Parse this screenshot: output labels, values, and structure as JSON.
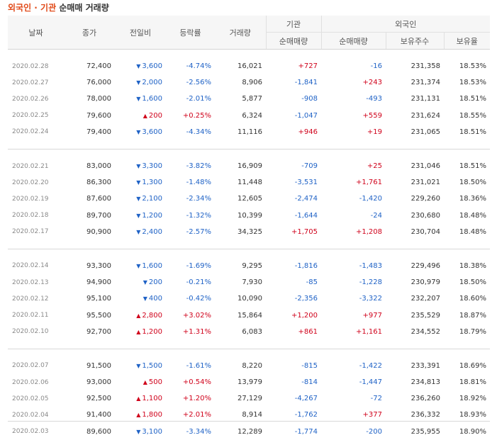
{
  "title": {
    "part1": "외국인 · 기관",
    "part2": "순매매 거래량"
  },
  "headers": {
    "date": "날짜",
    "close": "종가",
    "change": "전일비",
    "rate": "등락률",
    "volume": "거래량",
    "inst_group": "기관",
    "inst_net": "순매매량",
    "foreign_group": "외국인",
    "foreign_net": "순매매량",
    "foreign_hold": "보유주수",
    "foreign_ratio": "보유율"
  },
  "colors": {
    "up": "#d0021b",
    "down": "#1f62c6",
    "brand": "#e14a19"
  },
  "groups": [
    [
      {
        "date": "2020.02.28",
        "close": "72,400",
        "dir": "down",
        "change": "3,600",
        "rate": "-4.74%",
        "volume": "16,021",
        "inst": "+727",
        "foreign": "-16",
        "hold": "231,358",
        "ratio": "18.53%"
      },
      {
        "date": "2020.02.27",
        "close": "76,000",
        "dir": "down",
        "change": "2,000",
        "rate": "-2.56%",
        "volume": "8,906",
        "inst": "-1,841",
        "foreign": "+243",
        "hold": "231,374",
        "ratio": "18.53%"
      },
      {
        "date": "2020.02.26",
        "close": "78,000",
        "dir": "down",
        "change": "1,600",
        "rate": "-2.01%",
        "volume": "5,877",
        "inst": "-908",
        "foreign": "-493",
        "hold": "231,131",
        "ratio": "18.51%"
      },
      {
        "date": "2020.02.25",
        "close": "79,600",
        "dir": "up",
        "change": "200",
        "rate": "+0.25%",
        "volume": "6,324",
        "inst": "-1,047",
        "foreign": "+559",
        "hold": "231,624",
        "ratio": "18.55%"
      },
      {
        "date": "2020.02.24",
        "close": "79,400",
        "dir": "down",
        "change": "3,600",
        "rate": "-4.34%",
        "volume": "11,116",
        "inst": "+946",
        "foreign": "+19",
        "hold": "231,065",
        "ratio": "18.51%"
      }
    ],
    [
      {
        "date": "2020.02.21",
        "close": "83,000",
        "dir": "down",
        "change": "3,300",
        "rate": "-3.82%",
        "volume": "16,909",
        "inst": "-709",
        "foreign": "+25",
        "hold": "231,046",
        "ratio": "18.51%"
      },
      {
        "date": "2020.02.20",
        "close": "86,300",
        "dir": "down",
        "change": "1,300",
        "rate": "-1.48%",
        "volume": "11,448",
        "inst": "-3,531",
        "foreign": "+1,761",
        "hold": "231,021",
        "ratio": "18.50%"
      },
      {
        "date": "2020.02.19",
        "close": "87,600",
        "dir": "down",
        "change": "2,100",
        "rate": "-2.34%",
        "volume": "12,605",
        "inst": "-2,474",
        "foreign": "-1,420",
        "hold": "229,260",
        "ratio": "18.36%"
      },
      {
        "date": "2020.02.18",
        "close": "89,700",
        "dir": "down",
        "change": "1,200",
        "rate": "-1.32%",
        "volume": "10,399",
        "inst": "-1,644",
        "foreign": "-24",
        "hold": "230,680",
        "ratio": "18.48%"
      },
      {
        "date": "2020.02.17",
        "close": "90,900",
        "dir": "down",
        "change": "2,400",
        "rate": "-2.57%",
        "volume": "34,325",
        "inst": "+1,705",
        "foreign": "+1,208",
        "hold": "230,704",
        "ratio": "18.48%"
      }
    ],
    [
      {
        "date": "2020.02.14",
        "close": "93,300",
        "dir": "down",
        "change": "1,600",
        "rate": "-1.69%",
        "volume": "9,295",
        "inst": "-1,816",
        "foreign": "-1,483",
        "hold": "229,496",
        "ratio": "18.38%"
      },
      {
        "date": "2020.02.13",
        "close": "94,900",
        "dir": "down",
        "change": "200",
        "rate": "-0.21%",
        "volume": "7,930",
        "inst": "-85",
        "foreign": "-1,228",
        "hold": "230,979",
        "ratio": "18.50%"
      },
      {
        "date": "2020.02.12",
        "close": "95,100",
        "dir": "down",
        "change": "400",
        "rate": "-0.42%",
        "volume": "10,090",
        "inst": "-2,356",
        "foreign": "-3,322",
        "hold": "232,207",
        "ratio": "18.60%"
      },
      {
        "date": "2020.02.11",
        "close": "95,500",
        "dir": "up",
        "change": "2,800",
        "rate": "+3.02%",
        "volume": "15,864",
        "inst": "+1,200",
        "foreign": "+977",
        "hold": "235,529",
        "ratio": "18.87%"
      },
      {
        "date": "2020.02.10",
        "close": "92,700",
        "dir": "up",
        "change": "1,200",
        "rate": "+1.31%",
        "volume": "6,083",
        "inst": "+861",
        "foreign": "+1,161",
        "hold": "234,552",
        "ratio": "18.79%"
      }
    ],
    [
      {
        "date": "2020.02.07",
        "close": "91,500",
        "dir": "down",
        "change": "1,500",
        "rate": "-1.61%",
        "volume": "8,220",
        "inst": "-815",
        "foreign": "-1,422",
        "hold": "233,391",
        "ratio": "18.69%"
      },
      {
        "date": "2020.02.06",
        "close": "93,000",
        "dir": "up",
        "change": "500",
        "rate": "+0.54%",
        "volume": "13,979",
        "inst": "-814",
        "foreign": "-1,447",
        "hold": "234,813",
        "ratio": "18.81%"
      },
      {
        "date": "2020.02.05",
        "close": "92,500",
        "dir": "up",
        "change": "1,100",
        "rate": "+1.20%",
        "volume": "27,129",
        "inst": "-4,267",
        "foreign": "-72",
        "hold": "236,260",
        "ratio": "18.92%"
      },
      {
        "date": "2020.02.04",
        "close": "91,400",
        "dir": "up",
        "change": "1,800",
        "rate": "+2.01%",
        "volume": "8,914",
        "inst": "-1,762",
        "foreign": "+377",
        "hold": "236,332",
        "ratio": "18.93%"
      },
      {
        "date": "2020.02.03",
        "close": "89,600",
        "dir": "down",
        "change": "3,100",
        "rate": "-3.34%",
        "volume": "12,289",
        "inst": "-1,774",
        "foreign": "-200",
        "hold": "235,955",
        "ratio": "18.90%"
      }
    ]
  ]
}
